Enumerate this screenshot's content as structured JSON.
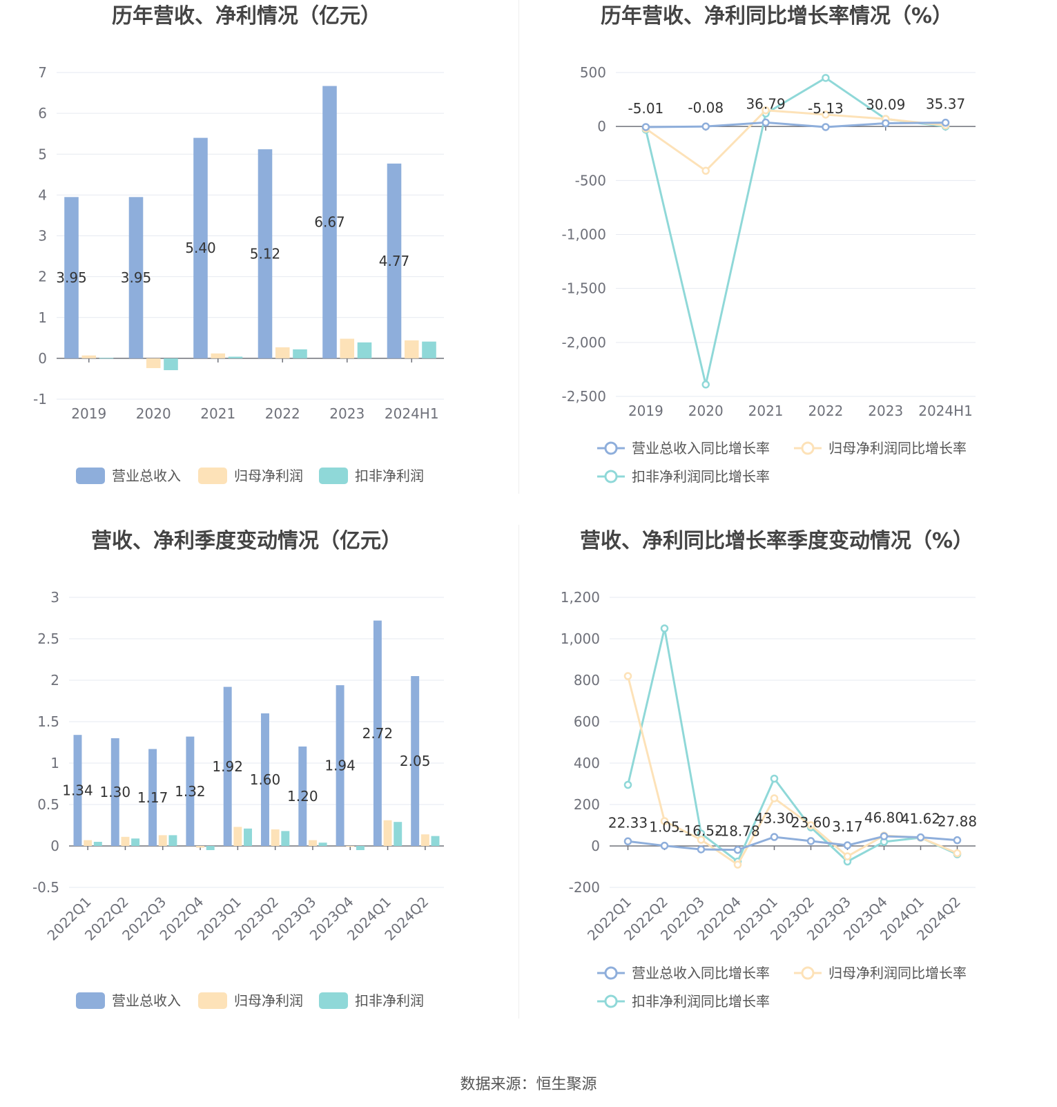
{
  "colors": {
    "revenue": "#8eaedb",
    "net_profit": "#fde2b8",
    "deducted_profit": "#8fd8d8"
  },
  "source_label": "数据来源：恒生聚源",
  "charts": [
    {
      "chart_data": {
        "type": "bar",
        "title": "历年营收、净利情况（亿元）",
        "categories": [
          "2019",
          "2020",
          "2021",
          "2022",
          "2023",
          "2024H1"
        ],
        "ylim": [
          -1,
          7
        ],
        "yticks": [
          -1,
          0,
          1,
          2,
          3,
          4,
          5,
          6,
          7
        ],
        "grid": true,
        "legend_position": "bottom",
        "series": [
          {
            "name": "营业总收入",
            "color": "#8eaedb",
            "values": [
              3.95,
              3.95,
              5.4,
              5.12,
              6.67,
              4.77
            ],
            "labels": [
              "3.95",
              "3.95",
              "5.40",
              "5.12",
              "6.67",
              "4.77"
            ]
          },
          {
            "name": "归母净利润",
            "color": "#fde2b8",
            "values": [
              0.07,
              -0.24,
              0.12,
              0.27,
              0.48,
              0.44
            ]
          },
          {
            "name": "扣非净利润",
            "color": "#8fd8d8",
            "values": [
              0.01,
              -0.29,
              0.04,
              0.22,
              0.39,
              0.41
            ]
          }
        ]
      }
    },
    {
      "chart_data": {
        "type": "line",
        "title": "历年营收、净利同比增长率情况（%）",
        "categories": [
          "2019",
          "2020",
          "2021",
          "2022",
          "2023",
          "2024H1"
        ],
        "ylim": [
          -2500,
          500
        ],
        "yticks": [
          -2500,
          -2000,
          -1500,
          -1000,
          -500,
          0,
          500
        ],
        "ytick_labels": [
          "-2,500",
          "-2,000",
          "-1,500",
          "-1,000",
          "-500",
          "0",
          "500"
        ],
        "grid": true,
        "legend_position": "bottom",
        "series": [
          {
            "name": "营业总收入同比增长率",
            "color": "#8eaedb",
            "values": [
              -5.01,
              -0.08,
              36.79,
              -5.13,
              30.09,
              35.37
            ],
            "labels": [
              "-5.01",
              "-0.08",
              "36.79",
              "-5.13",
              "30.09",
              "35.37"
            ]
          },
          {
            "name": "归母净利润同比增长率",
            "color": "#fde2b8",
            "values": [
              -20,
              -410,
              150,
              110,
              70,
              10
            ]
          },
          {
            "name": "扣非净利润同比增长率",
            "color": "#8fd8d8",
            "values": [
              -30,
              -2390,
              120,
              450,
              70,
              0
            ]
          }
        ]
      }
    },
    {
      "chart_data": {
        "type": "bar",
        "title": "营收、净利季度变动情况（亿元）",
        "categories": [
          "2022Q1",
          "2022Q2",
          "2022Q3",
          "2022Q4",
          "2023Q1",
          "2023Q2",
          "2023Q3",
          "2023Q4",
          "2024Q1",
          "2024Q2"
        ],
        "ylim": [
          -0.5,
          3
        ],
        "yticks": [
          -0.5,
          0,
          0.5,
          1,
          1.5,
          2,
          2.5,
          3
        ],
        "ytick_labels": [
          "-0.5",
          "0",
          "0.5",
          "1",
          "1.5",
          "2",
          "2.5",
          "3"
        ],
        "grid": true,
        "legend_position": "bottom",
        "series": [
          {
            "name": "营业总收入",
            "color": "#8eaedb",
            "values": [
              1.34,
              1.3,
              1.17,
              1.32,
              1.92,
              1.6,
              1.2,
              1.94,
              2.72,
              2.05
            ],
            "labels": [
              "1.34",
              "1.30",
              "1.17",
              "1.32",
              "1.92",
              "1.60",
              "1.20",
              "1.94",
              "2.72",
              "2.05"
            ]
          },
          {
            "name": "归母净利润",
            "color": "#fde2b8",
            "values": [
              0.07,
              0.11,
              0.13,
              -0.02,
              0.23,
              0.2,
              0.07,
              -0.01,
              0.31,
              0.14
            ]
          },
          {
            "name": "扣非净利润",
            "color": "#8fd8d8",
            "values": [
              0.05,
              0.09,
              0.13,
              -0.05,
              0.21,
              0.18,
              0.04,
              -0.05,
              0.29,
              0.12
            ]
          }
        ]
      }
    },
    {
      "chart_data": {
        "type": "line",
        "title": "营收、净利同比增长率季度变动情况（%）",
        "categories": [
          "2022Q1",
          "2022Q2",
          "2022Q3",
          "2022Q4",
          "2023Q1",
          "2023Q2",
          "2023Q3",
          "2023Q4",
          "2024Q1",
          "2024Q2"
        ],
        "ylim": [
          -200,
          1200
        ],
        "yticks": [
          -200,
          0,
          200,
          400,
          600,
          800,
          1000,
          1200
        ],
        "ytick_labels": [
          "-200",
          "0",
          "200",
          "400",
          "600",
          "800",
          "1,000",
          "1,200"
        ],
        "grid": true,
        "legend_position": "bottom",
        "series": [
          {
            "name": "营业总收入同比增长率",
            "color": "#8eaedb",
            "values": [
              22.33,
              1.05,
              -16.52,
              -18.78,
              43.3,
              23.6,
              3.17,
              46.8,
              41.62,
              27.88
            ],
            "labels": [
              "22.33",
              "1.05",
              "-16.52",
              "-18.78",
              "43.30",
              "23.60",
              "3.17",
              "46.80",
              "41.62",
              "27.88"
            ]
          },
          {
            "name": "归母净利润同比增长率",
            "color": "#fde2b8",
            "values": [
              820,
              120,
              30,
              -90,
              230,
              100,
              -50,
              50,
              40,
              -35
            ]
          },
          {
            "name": "扣非净利润同比增长率",
            "color": "#8fd8d8",
            "values": [
              295,
              1050,
              60,
              -75,
              325,
              90,
              -75,
              20,
              40,
              -40
            ]
          }
        ]
      }
    }
  ]
}
